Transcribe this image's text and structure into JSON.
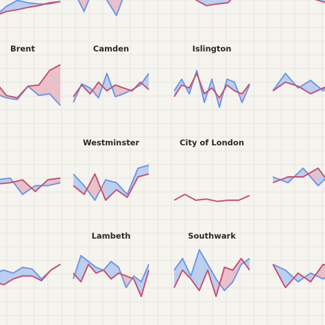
{
  "chart_data": {
    "type": "line",
    "layout": "small-multiples",
    "grid": true,
    "colors": {
      "series_a": "#c8506e",
      "series_b": "#6a98ea",
      "fill_a_above": "#e8b6c2",
      "fill_b_above": "#b2c8ef",
      "background": "#f6f4ef"
    },
    "panels": [
      {
        "label": "",
        "a": [
          0.52,
          0.62,
          0.55,
          0.52,
          0.48,
          0.45,
          0.4,
          0.38
        ],
        "b": [
          0.52,
          0.62,
          0.46,
          0.36,
          0.4,
          0.42,
          0.42,
          0.38
        ]
      },
      {
        "label": "",
        "a": [
          0.18,
          0.1,
          0.05,
          0.2,
          0.08,
          0.12,
          0.1,
          0.08
        ],
        "b": [
          0.18,
          0.55,
          0.08,
          0.32,
          0.62,
          0.12,
          0.3,
          0.05
        ]
      },
      {
        "label": "",
        "a": [
          0.25,
          0.05,
          0.35,
          0.45,
          0.42,
          0.4,
          0.2,
          0.1
        ],
        "b": [
          0.25,
          0.1,
          0.25,
          0.05,
          0.02,
          0.03,
          0.05,
          0.1
        ]
      },
      {
        "label": "",
        "a": [
          0.05,
          0.15,
          0.3,
          0.25,
          0.35,
          0.4,
          0.35,
          0.3
        ],
        "b": [
          0.05,
          0.05,
          0.15,
          0.12,
          0.2,
          0.22,
          0.2,
          0.28
        ]
      },
      {
        "label": "Brent",
        "a": [
          0.65,
          0.35,
          0.58,
          0.62,
          0.42,
          0.4,
          0.15,
          0.05
        ],
        "b": [
          0.2,
          0.55,
          0.62,
          0.65,
          0.42,
          0.58,
          0.55,
          0.75
        ]
      },
      {
        "label": "Camden",
        "a": [
          0.6,
          0.4,
          0.55,
          0.35,
          0.5,
          0.4,
          0.45,
          0.5,
          0.35,
          0.48
        ],
        "b": [
          0.7,
          0.38,
          0.45,
          0.62,
          0.2,
          0.6,
          0.55,
          0.48,
          0.4,
          0.2
        ]
      },
      {
        "label": "Islington",
        "a": [
          0.6,
          0.4,
          0.45,
          0.2,
          0.55,
          0.45,
          0.62,
          0.4,
          0.5,
          0.55,
          0.38
        ],
        "b": [
          0.5,
          0.3,
          0.55,
          0.15,
          0.7,
          0.3,
          0.78,
          0.3,
          0.35,
          0.7,
          0.4
        ]
      },
      {
        "label": "",
        "a": [
          0.5,
          0.35,
          0.42,
          0.55,
          0.45,
          0.38,
          0.5
        ],
        "b": [
          0.5,
          0.2,
          0.45,
          0.32,
          0.5,
          0.22,
          0.4
        ]
      },
      {
        "label": "",
        "a": [
          0.25,
          0.52,
          0.5,
          0.45,
          0.65,
          0.45,
          0.42
        ],
        "b": [
          0.1,
          0.45,
          0.42,
          0.7,
          0.55,
          0.55,
          0.5
        ]
      },
      {
        "label": "Westminster",
        "a": [
          0.55,
          0.7,
          0.35,
          0.8,
          0.62,
          0.75,
          0.4,
          0.35
        ],
        "b": [
          0.35,
          0.55,
          0.8,
          0.45,
          0.5,
          0.7,
          0.25,
          0.2
        ]
      },
      {
        "label": "City of London",
        "a": [
          0.8,
          0.7,
          0.8,
          0.78,
          0.82,
          0.8,
          0.8,
          0.72
        ],
        "b": []
      },
      {
        "label": "",
        "a": [
          0.5,
          0.4,
          0.4,
          0.25,
          0.6,
          0.45
        ],
        "b": [
          0.4,
          0.5,
          0.25,
          0.55,
          0.3,
          0.4
        ]
      },
      {
        "label": "",
        "a": [
          0.65,
          0.6,
          0.65,
          0.55,
          0.5,
          0.5,
          0.58,
          0.4,
          0.3
        ],
        "b": [
          0.55,
          0.45,
          0.4,
          0.45,
          0.35,
          0.38,
          0.55,
          0.4,
          0.3
        ]
      },
      {
        "label": "Lambeth",
        "a": [
          0.45,
          0.6,
          0.3,
          0.45,
          0.4,
          0.55,
          0.45,
          0.5,
          0.55,
          0.85,
          0.4
        ],
        "b": [
          0.55,
          0.15,
          0.25,
          0.35,
          0.4,
          0.25,
          0.35,
          0.7,
          0.5,
          0.6,
          0.3
        ]
      },
      {
        "label": "Southwark",
        "a": [
          0.7,
          0.4,
          0.55,
          0.75,
          0.4,
          0.85,
          0.35,
          0.4,
          0.2,
          0.4
        ],
        "b": [
          0.4,
          0.2,
          0.5,
          0.05,
          0.3,
          0.55,
          0.75,
          0.6,
          0.3,
          0.2
        ]
      },
      {
        "label": "",
        "a": [
          0.3,
          0.7,
          0.45,
          0.6,
          0.3,
          0.4,
          0.55
        ],
        "b": [
          0.3,
          0.4,
          0.6,
          0.45,
          0.55,
          0.4,
          0.45
        ]
      }
    ]
  }
}
